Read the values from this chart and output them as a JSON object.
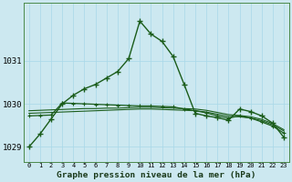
{
  "title": "Graphe pression niveau de la mer (hPa)",
  "hours": [
    0,
    1,
    2,
    3,
    4,
    5,
    6,
    7,
    8,
    9,
    10,
    11,
    12,
    13,
    14,
    15,
    16,
    17,
    18,
    19,
    20,
    21,
    22,
    23
  ],
  "series": [
    {
      "color": "#1a5c1a",
      "linewidth": 1.0,
      "marker": "+",
      "markersize": 4,
      "markeredgewidth": 1.0,
      "values": [
        1029.0,
        1029.3,
        1029.65,
        1030.0,
        1030.2,
        1030.35,
        1030.45,
        1030.6,
        1030.75,
        1031.05,
        1031.92,
        1031.62,
        1031.45,
        1031.1,
        1030.45,
        1029.78,
        1029.72,
        1029.68,
        1029.62,
        1029.88,
        1029.82,
        1029.72,
        1029.55,
        1029.22
      ]
    },
    {
      "color": "#1a5c1a",
      "linewidth": 0.9,
      "marker": "+",
      "markersize": 3,
      "markeredgewidth": 0.8,
      "values": [
        1029.72,
        1029.73,
        1029.74,
        1030.02,
        1030.01,
        1030.0,
        1029.99,
        1029.98,
        1029.97,
        1029.96,
        1029.95,
        1029.95,
        1029.94,
        1029.93,
        1029.88,
        1029.84,
        1029.79,
        1029.72,
        1029.67,
        1029.72,
        1029.67,
        1029.58,
        1029.48,
        1029.32
      ]
    },
    {
      "color": "#1a5c1a",
      "linewidth": 0.8,
      "marker": null,
      "markersize": 0,
      "markeredgewidth": 0,
      "values": [
        1029.78,
        1029.79,
        1029.8,
        1029.81,
        1029.82,
        1029.83,
        1029.84,
        1029.85,
        1029.86,
        1029.87,
        1029.88,
        1029.88,
        1029.87,
        1029.86,
        1029.85,
        1029.84,
        1029.81,
        1029.76,
        1029.71,
        1029.7,
        1029.67,
        1029.61,
        1029.51,
        1029.37
      ]
    },
    {
      "color": "#1a5c1a",
      "linewidth": 0.8,
      "marker": null,
      "markersize": 0,
      "markeredgewidth": 0,
      "values": [
        1029.84,
        1029.85,
        1029.86,
        1029.87,
        1029.88,
        1029.89,
        1029.89,
        1029.9,
        1029.9,
        1029.91,
        1029.92,
        1029.92,
        1029.91,
        1029.9,
        1029.89,
        1029.88,
        1029.85,
        1029.8,
        1029.75,
        1029.73,
        1029.7,
        1029.64,
        1029.54,
        1029.4
      ]
    }
  ],
  "ylim": [
    1028.65,
    1032.35
  ],
  "yticks": [
    1029,
    1030,
    1031
  ],
  "ytick_fontsize": 6.5,
  "xtick_fontsize": 5.0,
  "title_fontsize": 6.8,
  "bg_color": "#cce8f0",
  "grid_color": "#a8d8e8",
  "line_color": "#1a5c1a",
  "border_color": "#4a8a4a"
}
